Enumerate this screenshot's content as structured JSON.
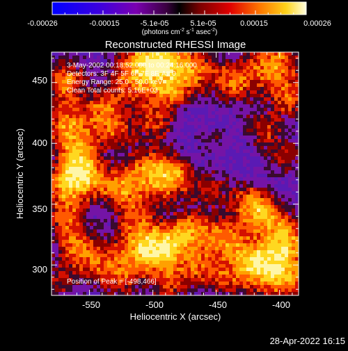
{
  "colorbar": {
    "ticks": [
      "-0.00026",
      "-0.00015",
      "-5.1e-05",
      "5.1e-05",
      "0.00015",
      "0.00026"
    ],
    "units_prefix": "(photons cm",
    "units_exp1": "-2",
    "units_mid": " s",
    "units_exp2": "-1",
    "units_mid2": " asec",
    "units_exp3": "-2",
    "units_suffix": ")"
  },
  "plot": {
    "title": "Reconstructed RHESSI Image",
    "xlabel": "Heliocentric X (arcsec)",
    "ylabel": "Heliocentric Y (arcsec)",
    "xlim": [
      -580,
      -385
    ],
    "ylim": [
      275,
      475
    ],
    "xticks": [
      -550,
      -500,
      -450,
      -400
    ],
    "yticks": [
      300,
      350,
      400,
      450
    ],
    "annotations": [
      "3-May-2002 00:18:52.000 to 00:24:16.000",
      "Detectors: 3F 4F 5F 6F 7F 8F, Att 0",
      "Energy Range: 25.0 - 50.0 keV",
      "Clean     Total counts: 5.16E+03"
    ],
    "peak_label": "Position of Peak = [-498,466]"
  },
  "footer": {
    "timestamp": "28-Apr-2022 16:15"
  },
  "colors": {
    "background": "#000000",
    "foreground": "#ffffff"
  }
}
